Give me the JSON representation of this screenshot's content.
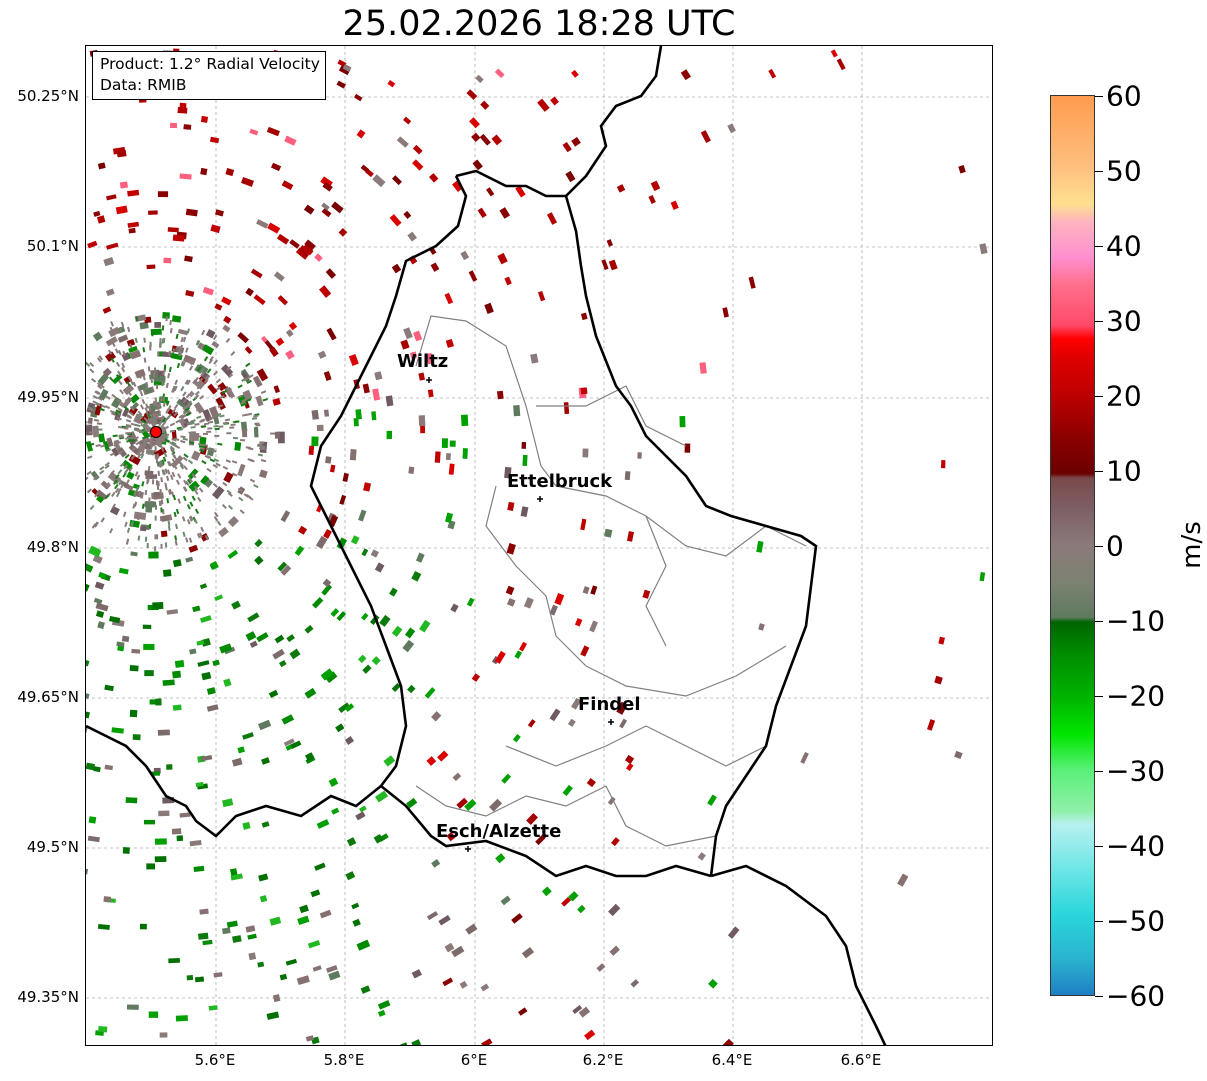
{
  "title": "25.02.2026 18:28 UTC",
  "info_box": {
    "product": "Product: 1.2° Radial Velocity",
    "data_source": "Data: RMIB"
  },
  "axes": {
    "x_labels": [
      "5.6°E",
      "5.8°E",
      "6°E",
      "6.2°E",
      "6.4°E",
      "6.6°E"
    ],
    "y_labels": [
      "50.25°N",
      "50.1°N",
      "49.95°N",
      "49.8°N",
      "49.65°N",
      "49.5°N",
      "49.35°N"
    ]
  },
  "cities": [
    {
      "name": "Wiltz"
    },
    {
      "name": "Ettelbruck"
    },
    {
      "name": "Findel"
    },
    {
      "name": "Esch/Alzette"
    }
  ],
  "colorbar": {
    "unit": "m/s",
    "ticks": [
      "60",
      "50",
      "40",
      "30",
      "20",
      "10",
      "0",
      "−10",
      "−20",
      "−30",
      "−40",
      "−50",
      "−60"
    ],
    "min": -60,
    "max": 60
  },
  "colors": {
    "border": "#000000",
    "canton_lines": "#808080",
    "radar_site": "#ff0000",
    "grid": "#b0b0b0"
  }
}
